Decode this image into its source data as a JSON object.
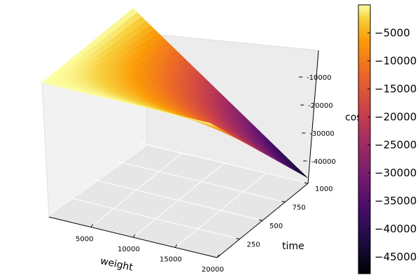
{
  "chart_data": {
    "type": "surface",
    "title": "",
    "xlabel": "weight",
    "ylabel": "time",
    "zlabel": "cost",
    "x_ticks": [
      "5000",
      "10000",
      "15000",
      "20000"
    ],
    "y_ticks": [
      "250",
      "500",
      "750",
      "1000"
    ],
    "z_ticks": [
      "-10000",
      "-20000",
      "-30000",
      "-40000"
    ],
    "x_range": [
      0,
      20000
    ],
    "y_range": [
      0,
      1000
    ],
    "z_range": [
      -48000,
      0
    ],
    "colormap": "inferno",
    "colorbar": {
      "ticks": [
        "-5000",
        "-10000",
        "-15000",
        "-20000",
        "-25000",
        "-30000",
        "-35000",
        "-40000",
        "-45000"
      ],
      "range": [
        -48000,
        0
      ]
    },
    "grid": true,
    "surface_corners": [
      {
        "weight": 0,
        "time": 0,
        "cost": 0
      },
      {
        "weight": 0,
        "time": 1000,
        "cost": 0
      },
      {
        "weight": 20000,
        "time": 0,
        "cost": 0
      },
      {
        "weight": 20000,
        "time": 1000,
        "cost": -46000
      }
    ],
    "series": []
  }
}
